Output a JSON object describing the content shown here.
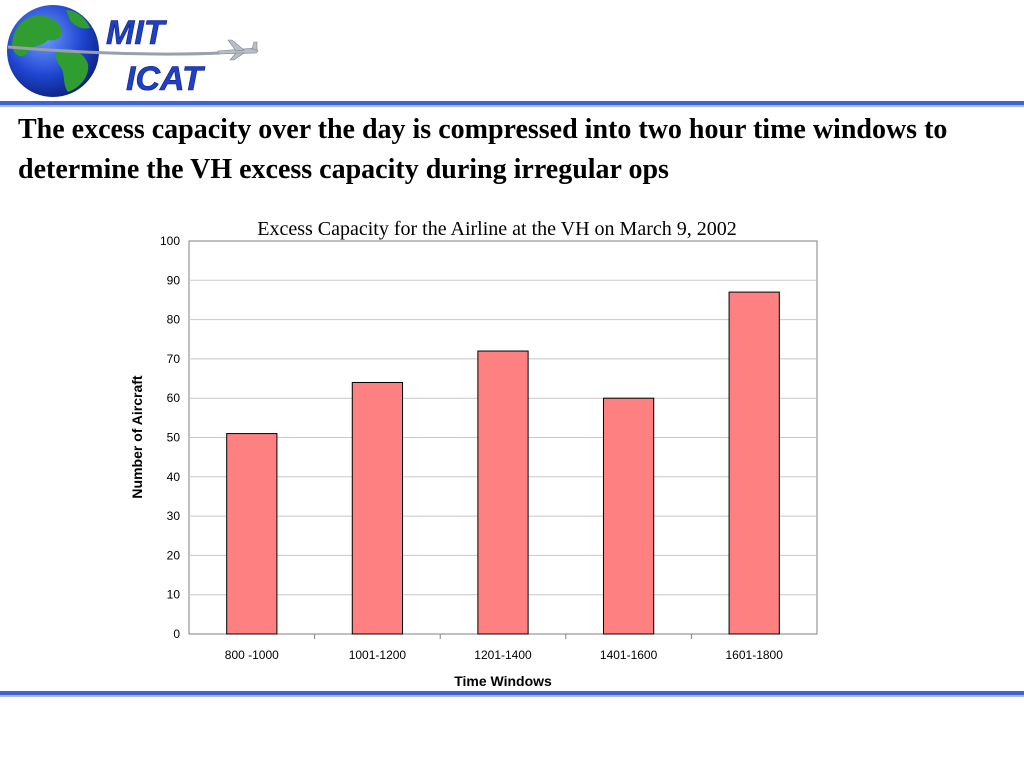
{
  "header": {
    "logo_line1": "MIT",
    "logo_line2": "ICAT",
    "logo_icons": [
      "globe-icon",
      "airplane-icon"
    ],
    "rule_color": "#3e63d4"
  },
  "slide": {
    "title": "The excess capacity over the day is compressed into two hour time windows to determine the VH excess capacity during irregular ops"
  },
  "chart_data": {
    "type": "bar",
    "title": "Excess Capacity for the Airline at the VH on March 9, 2002",
    "xlabel": "Time Windows",
    "ylabel": "Number of Aircraft",
    "categories": [
      "800 -1000",
      "1001-1200",
      "1201-1400",
      "1401-1600",
      "1601-1800"
    ],
    "values": [
      51,
      64,
      72,
      60,
      87
    ],
    "ylim": [
      0,
      100
    ],
    "yticks": [
      0,
      10,
      20,
      30,
      40,
      50,
      60,
      70,
      80,
      90,
      100
    ],
    "grid": true,
    "legend": "none",
    "bar_color": "#ff8080"
  }
}
